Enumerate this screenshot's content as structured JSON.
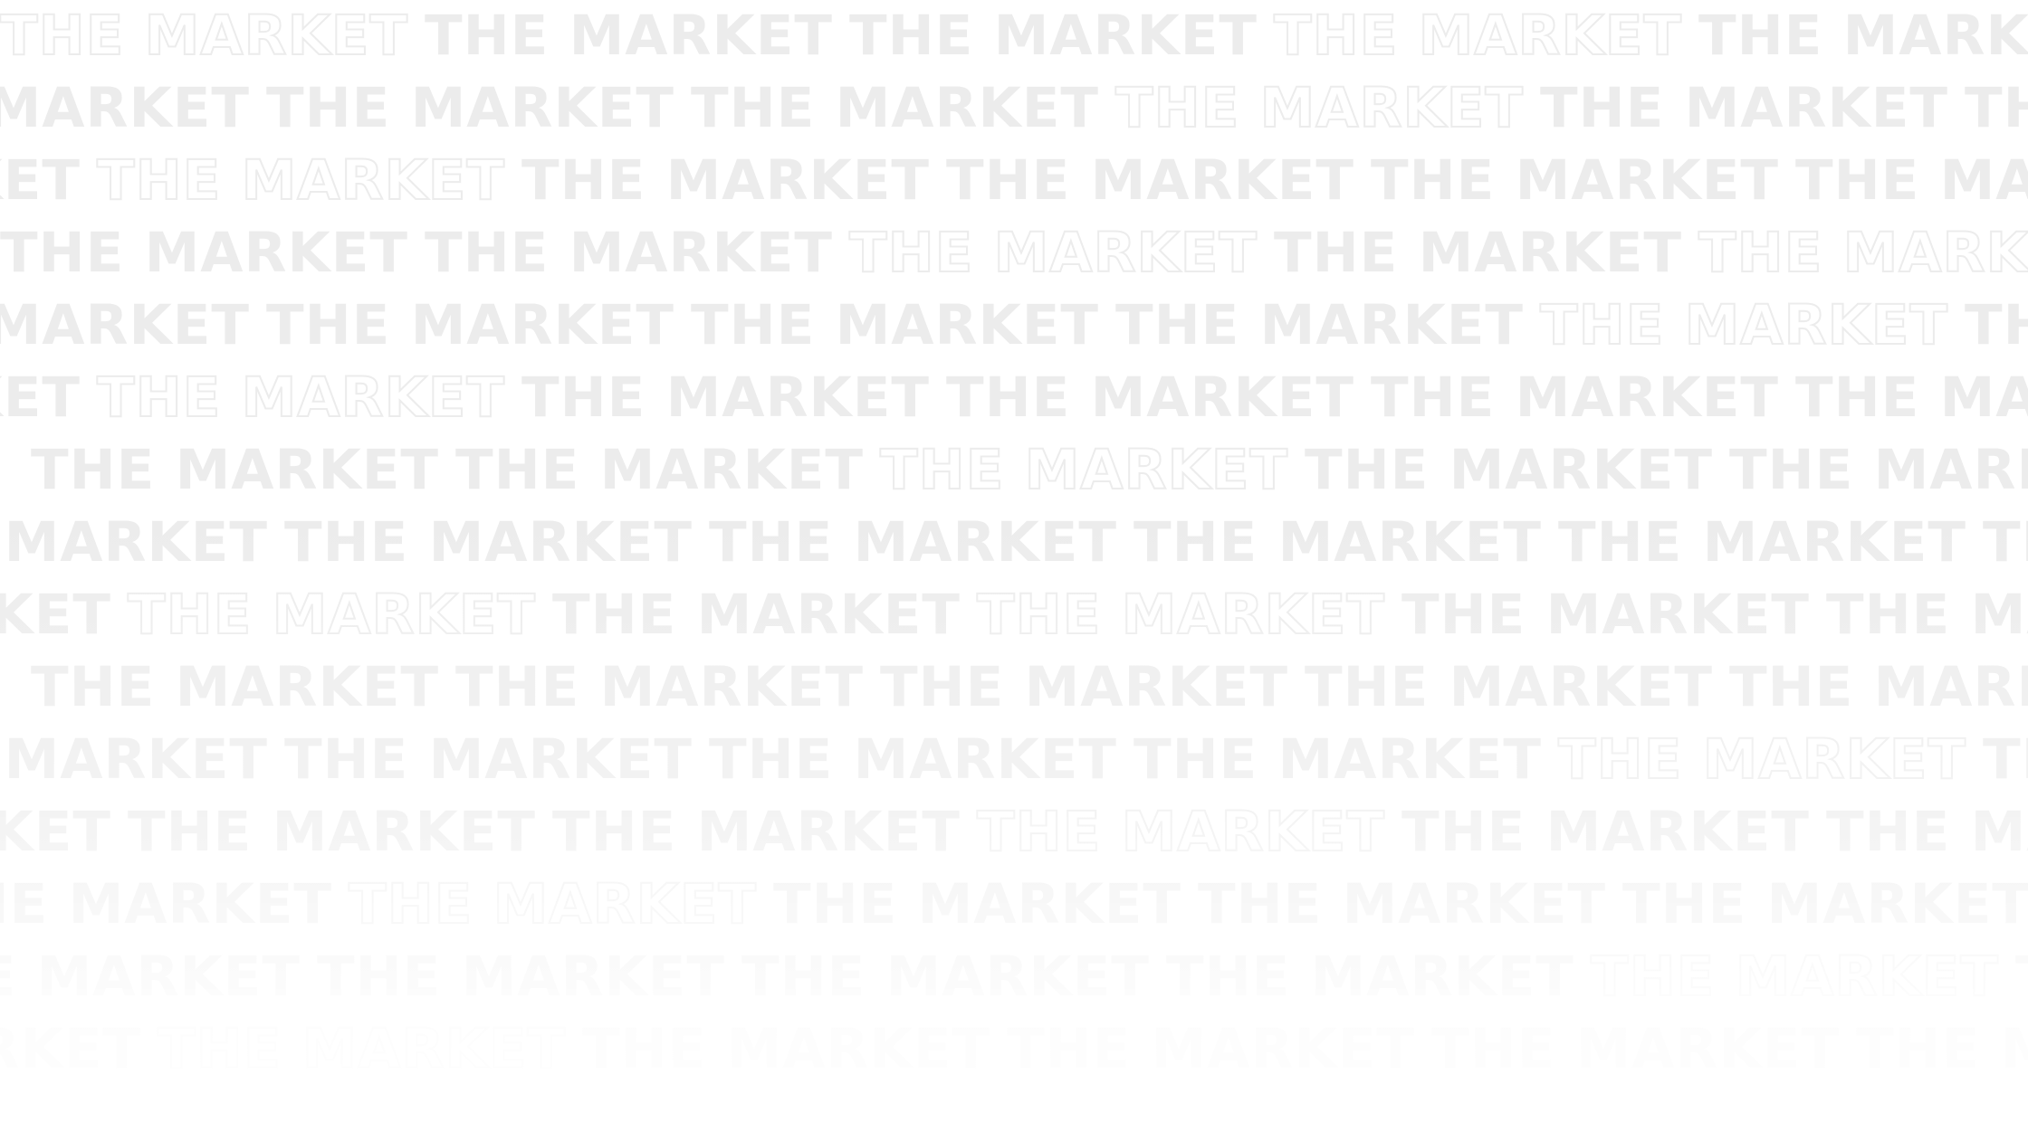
{
  "background": {
    "repeated_text": "THE MARKET",
    "page_color": "#ffffff",
    "text_color": "#ececec"
  }
}
